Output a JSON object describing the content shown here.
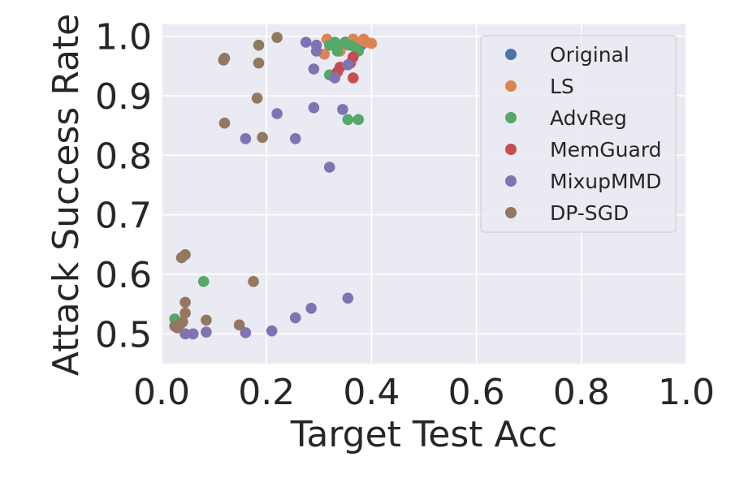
{
  "chart_data": {
    "type": "scatter",
    "xlabel": "Target Test Acc",
    "ylabel": "Attack Success Rate",
    "xlim": [
      0.0,
      1.0
    ],
    "ylim": [
      0.45,
      1.02
    ],
    "xticks": [
      "0.0",
      "0.2",
      "0.4",
      "0.6",
      "0.8",
      "1.0"
    ],
    "xtick_values": [
      0.0,
      0.2,
      0.4,
      0.6,
      0.8,
      1.0
    ],
    "yticks": [
      "0.5",
      "0.6",
      "0.7",
      "0.8",
      "0.9",
      "1.0"
    ],
    "ytick_values": [
      0.5,
      0.6,
      0.7,
      0.8,
      0.9,
      1.0
    ],
    "grid": true,
    "legend_position": "top-right",
    "series": [
      {
        "name": "Original",
        "color": "#4C72B0",
        "points": [
          [
            0.33,
            0.985
          ],
          [
            0.35,
            0.99
          ],
          [
            0.37,
            0.99
          ],
          [
            0.38,
            0.985
          ]
        ]
      },
      {
        "name": "LS",
        "color": "#DD8452",
        "points": [
          [
            0.315,
            0.995
          ],
          [
            0.31,
            0.97
          ],
          [
            0.34,
            0.975
          ],
          [
            0.355,
            0.985
          ],
          [
            0.365,
            0.995
          ],
          [
            0.375,
            0.99
          ],
          [
            0.385,
            0.995
          ],
          [
            0.39,
            0.99
          ],
          [
            0.4,
            0.988
          ]
        ]
      },
      {
        "name": "AdvReg",
        "color": "#55A868",
        "points": [
          [
            0.32,
            0.985
          ],
          [
            0.33,
            0.99
          ],
          [
            0.335,
            0.975
          ],
          [
            0.35,
            0.988
          ],
          [
            0.36,
            0.985
          ],
          [
            0.37,
            0.98
          ],
          [
            0.375,
            0.975
          ],
          [
            0.32,
            0.935
          ],
          [
            0.355,
            0.86
          ],
          [
            0.375,
            0.86
          ],
          [
            0.08,
            0.588
          ],
          [
            0.025,
            0.525
          ]
        ]
      },
      {
        "name": "MemGuard",
        "color": "#C44E52",
        "points": [
          [
            0.34,
            0.948
          ],
          [
            0.335,
            0.94
          ],
          [
            0.365,
            0.965
          ],
          [
            0.365,
            0.93
          ],
          [
            0.36,
            0.955
          ]
        ]
      },
      {
        "name": "MixupMMD",
        "color": "#8172B3",
        "points": [
          [
            0.275,
            0.99
          ],
          [
            0.295,
            0.975
          ],
          [
            0.295,
            0.985
          ],
          [
            0.29,
            0.945
          ],
          [
            0.33,
            0.93
          ],
          [
            0.355,
            0.952
          ],
          [
            0.29,
            0.88
          ],
          [
            0.345,
            0.877
          ],
          [
            0.22,
            0.87
          ],
          [
            0.16,
            0.828
          ],
          [
            0.255,
            0.828
          ],
          [
            0.32,
            0.78
          ],
          [
            0.355,
            0.56
          ],
          [
            0.285,
            0.543
          ],
          [
            0.255,
            0.527
          ],
          [
            0.21,
            0.505
          ],
          [
            0.16,
            0.502
          ],
          [
            0.085,
            0.503
          ],
          [
            0.06,
            0.5
          ],
          [
            0.045,
            0.5
          ]
        ]
      },
      {
        "name": "DP-SGD",
        "color": "#937860",
        "points": [
          [
            0.22,
            0.998
          ],
          [
            0.185,
            0.985
          ],
          [
            0.12,
            0.963
          ],
          [
            0.118,
            0.96
          ],
          [
            0.185,
            0.955
          ],
          [
            0.182,
            0.896
          ],
          [
            0.12,
            0.854
          ],
          [
            0.192,
            0.83
          ],
          [
            0.045,
            0.633
          ],
          [
            0.038,
            0.628
          ],
          [
            0.175,
            0.588
          ],
          [
            0.045,
            0.553
          ],
          [
            0.045,
            0.535
          ],
          [
            0.085,
            0.523
          ],
          [
            0.04,
            0.52
          ],
          [
            0.035,
            0.516
          ],
          [
            0.148,
            0.515
          ],
          [
            0.03,
            0.51
          ],
          [
            0.025,
            0.513
          ]
        ]
      }
    ]
  }
}
